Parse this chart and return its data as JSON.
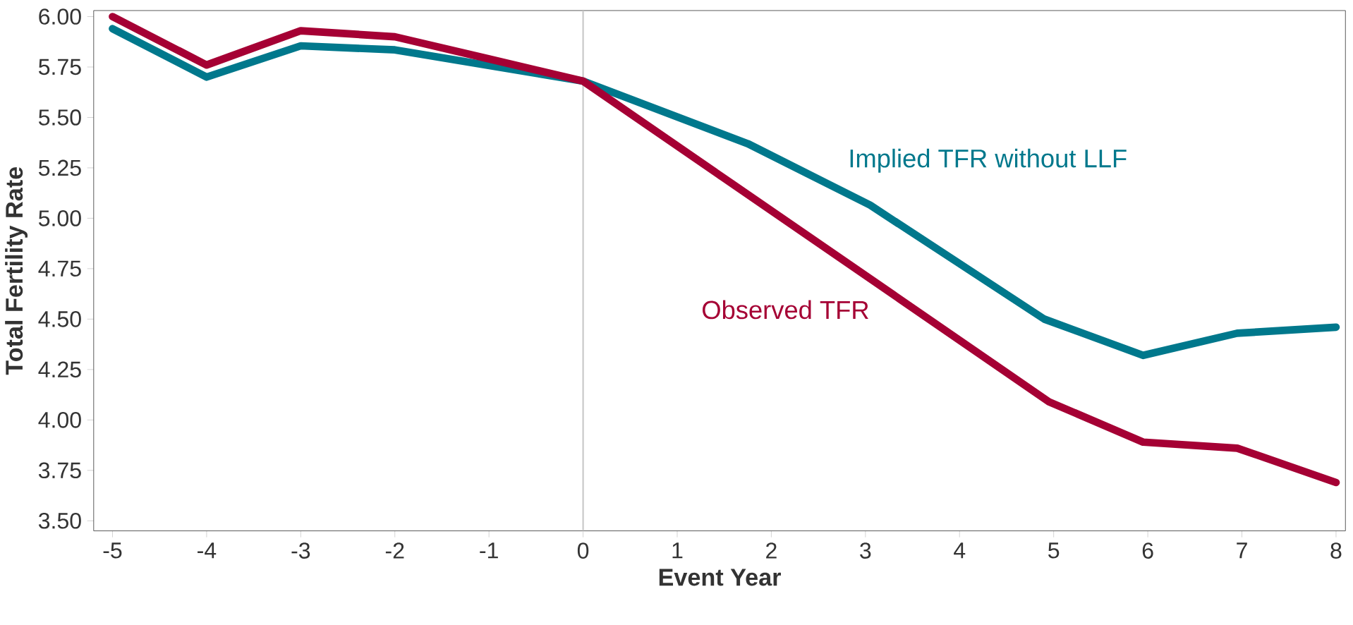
{
  "chart_data": {
    "type": "line",
    "xlabel": "Event Year",
    "ylabel": "Total Fertility Rate",
    "xlim": [
      -5.2,
      8.1
    ],
    "ylim": [
      3.45,
      6.03
    ],
    "xticks": [
      -5,
      -4,
      -3,
      -2,
      -1,
      0,
      1,
      2,
      3,
      4,
      5,
      6,
      7,
      8
    ],
    "yticks": [
      {
        "value": 3.5,
        "label": "3.50"
      },
      {
        "value": 3.75,
        "label": "3.75"
      },
      {
        "value": 4.0,
        "label": "4.00"
      },
      {
        "value": 4.25,
        "label": "4.25"
      },
      {
        "value": 4.5,
        "label": "4.50"
      },
      {
        "value": 4.75,
        "label": "4.75"
      },
      {
        "value": 5.0,
        "label": "5.00"
      },
      {
        "value": 5.25,
        "label": "5.25"
      },
      {
        "value": 5.5,
        "label": "5.50"
      },
      {
        "value": 5.75,
        "label": "5.75"
      },
      {
        "value": 6.0,
        "label": "6.00"
      }
    ],
    "grid": false,
    "legend": false,
    "ref_lines": [
      {
        "axis": "x",
        "value": 0,
        "color": "#c8c8c8"
      }
    ],
    "series": [
      {
        "name": "Implied TFR without LLF",
        "color": "#00788c",
        "x": [
          -5,
          -4,
          -3,
          -2,
          0,
          1.75,
          3.05,
          4.9,
          5.95,
          6.95,
          8
        ],
        "values": [
          5.94,
          5.7,
          5.855,
          5.835,
          5.68,
          5.37,
          5.065,
          4.5,
          4.32,
          4.43,
          4.46
        ]
      },
      {
        "name": "Observed TFR",
        "color": "#a50034",
        "x": [
          -5,
          -4,
          -3,
          -2,
          -1,
          0,
          4.95,
          5.95,
          6.95,
          8
        ],
        "values": [
          6.0,
          5.76,
          5.93,
          5.9,
          5.79,
          5.68,
          4.09,
          3.89,
          3.86,
          3.69
        ]
      }
    ]
  }
}
